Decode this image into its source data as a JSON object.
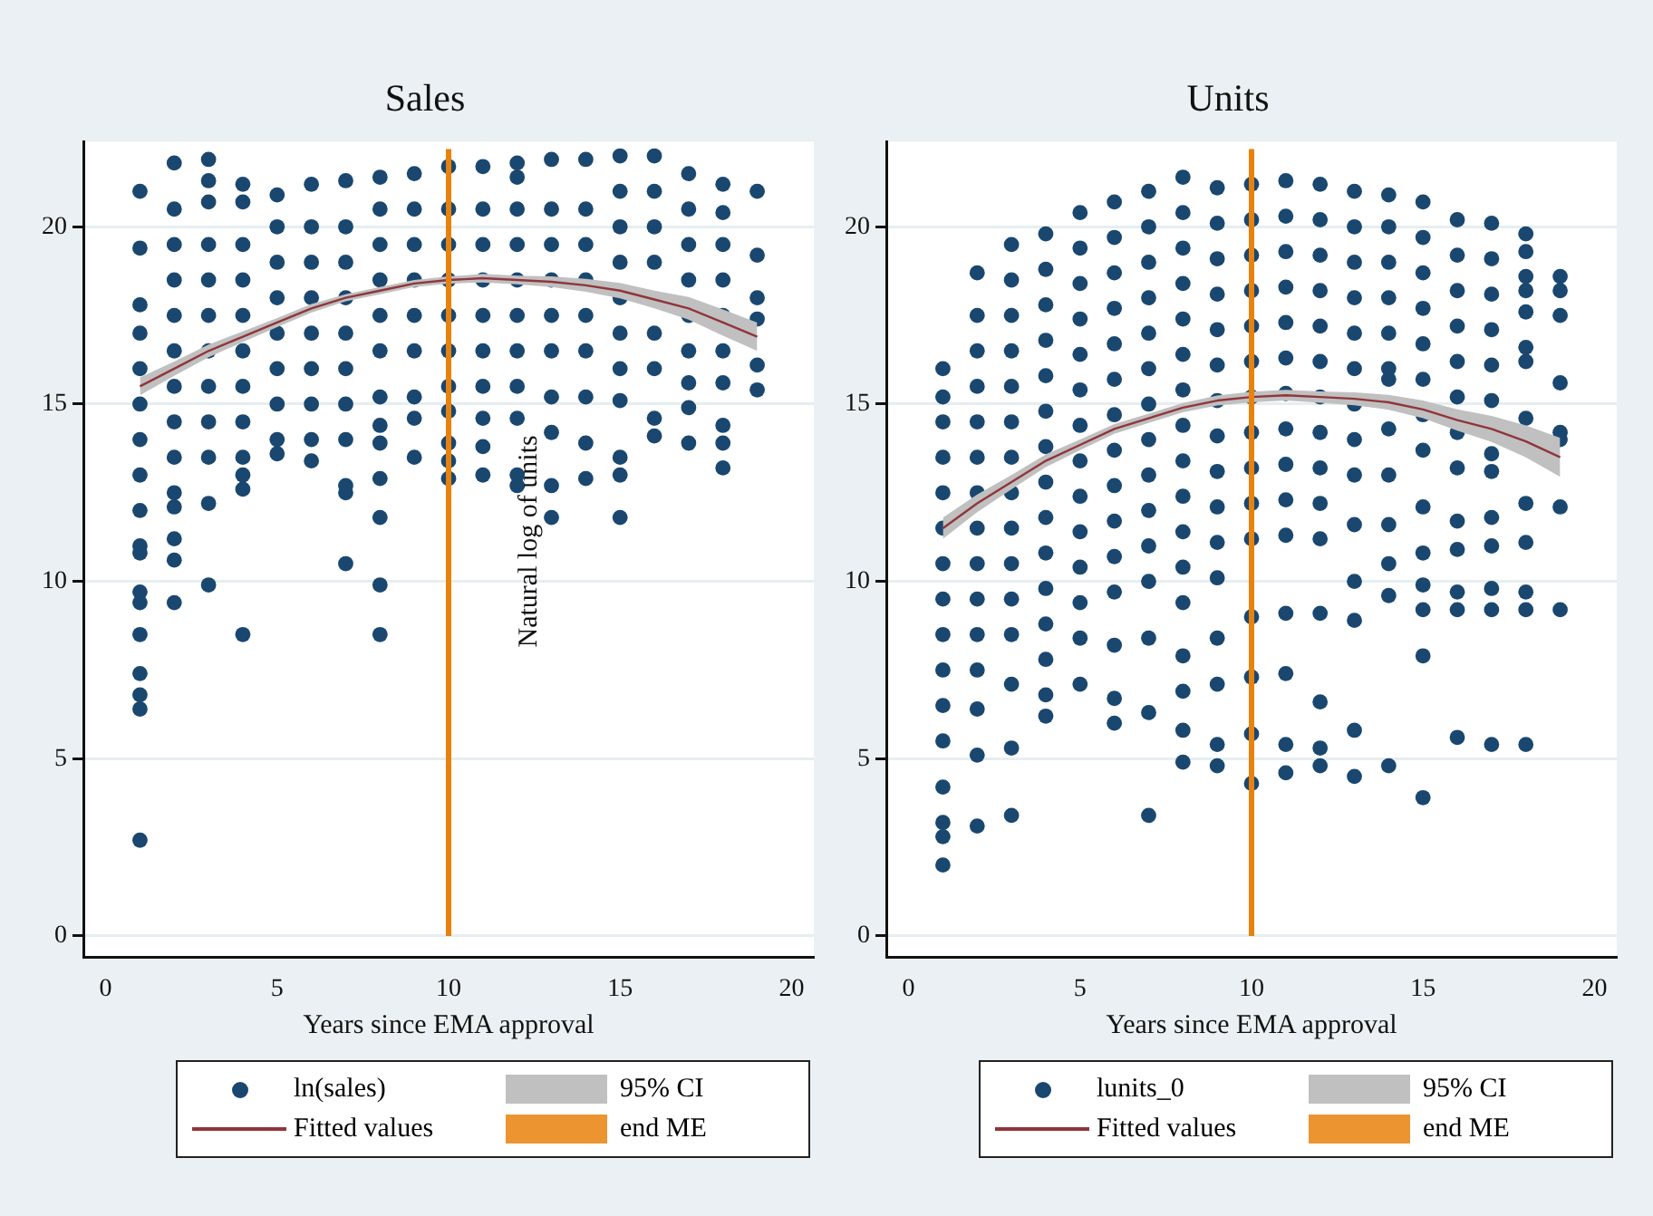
{
  "chart_data": [
    {
      "type": "scatter",
      "title": "Sales",
      "xlabel": "Years since EMA approval",
      "xlim": [
        -0.65,
        20.65
      ],
      "xticks": [
        0,
        5,
        10,
        15,
        20
      ],
      "ylim": [
        -0.6,
        22.4
      ],
      "yticks": [
        0,
        5,
        10,
        15,
        20
      ],
      "grid": "y",
      "legend": "bottom",
      "annotations": [
        "Natural log of units",
        "95% CI"
      ],
      "ref_lines": [
        {
          "axis": "x",
          "value": 10,
          "label": "end ME",
          "color": "#e8820c"
        }
      ],
      "series": [
        {
          "name": "ln(sales)",
          "color": "#1a476f",
          "marker": "circle",
          "x": [
            1,
            1,
            1,
            1,
            1,
            1,
            1,
            1,
            1,
            1,
            1,
            1,
            1,
            1,
            1,
            1,
            1,
            1,
            2,
            2,
            2,
            2,
            2,
            2,
            2,
            2,
            2,
            2,
            2,
            2,
            2,
            2,
            3,
            3,
            3,
            3,
            3,
            3,
            3,
            3,
            3,
            3,
            3,
            3,
            4,
            4,
            4,
            4,
            4,
            4,
            4,
            4,
            4,
            4,
            4,
            4,
            5,
            5,
            5,
            5,
            5,
            5,
            5,
            5,
            5,
            6,
            6,
            6,
            6,
            6,
            6,
            6,
            6,
            6,
            7,
            7,
            7,
            7,
            7,
            7,
            7,
            7,
            7,
            7,
            7,
            8,
            8,
            8,
            8,
            8,
            8,
            8,
            8,
            8,
            8,
            8,
            8,
            8,
            9,
            9,
            9,
            9,
            9,
            9,
            9,
            9,
            9,
            10,
            10,
            10,
            10,
            10,
            10,
            10,
            10,
            10,
            10,
            10,
            11,
            11,
            11,
            11,
            11,
            11,
            11,
            11,
            11,
            11,
            12,
            12,
            12,
            12,
            12,
            12,
            12,
            12,
            12,
            12,
            12,
            13,
            13,
            13,
            13,
            13,
            13,
            13,
            13,
            13,
            13,
            14,
            14,
            14,
            14,
            14,
            14,
            14,
            14,
            14,
            15,
            15,
            15,
            15,
            15,
            15,
            15,
            15,
            15,
            15,
            15,
            16,
            16,
            16,
            16,
            16,
            16,
            16,
            16,
            17,
            17,
            17,
            17,
            17,
            17,
            17,
            17,
            17,
            18,
            18,
            18,
            18,
            18,
            18,
            18,
            18,
            18,
            18,
            19,
            19,
            19,
            19,
            19,
            19
          ],
          "values": [
            21.0,
            19.4,
            17.8,
            17,
            16,
            15,
            14,
            13,
            12,
            11,
            10.8,
            9.7,
            9.4,
            8.5,
            7.4,
            6.8,
            6.4,
            2.7,
            21.8,
            20.5,
            19.5,
            18.5,
            17.5,
            16.5,
            15.5,
            14.5,
            13.5,
            12.5,
            12.1,
            11.2,
            10.6,
            9.4,
            21.9,
            21.3,
            20.7,
            19.5,
            18.5,
            17.5,
            16.5,
            15.5,
            14.5,
            13.5,
            12.2,
            9.9,
            21.2,
            20.7,
            19.5,
            18.5,
            17.5,
            16.5,
            15.5,
            14.5,
            13.5,
            13.0,
            12.6,
            8.5,
            20.9,
            20,
            19,
            18,
            17,
            16,
            15,
            14,
            13.6,
            21.2,
            20,
            19,
            18,
            17,
            16,
            15,
            14,
            13.4,
            21.3,
            20,
            19,
            18,
            17,
            16,
            15,
            14.0,
            12.7,
            12.5,
            10.5,
            21.4,
            20.5,
            19.5,
            18.5,
            17.5,
            16.5,
            15.2,
            14.4,
            13.9,
            12.9,
            11.8,
            9.9,
            8.5,
            21.5,
            20.5,
            19.5,
            18.5,
            17.5,
            16.5,
            15.2,
            14.6,
            13.5,
            21.7,
            20.5,
            19.5,
            18.5,
            17.5,
            16.5,
            15.5,
            14.8,
            13.9,
            13.4,
            12.9,
            21.7,
            20.5,
            19.5,
            18.5,
            17.5,
            16.5,
            15.5,
            14.6,
            13.8,
            13.0,
            21.8,
            21.4,
            20.5,
            19.5,
            18.5,
            17.5,
            16.5,
            15.5,
            14.6,
            13.0,
            12.7,
            21.9,
            20.5,
            19.5,
            18.5,
            17.5,
            16.5,
            15.2,
            14.2,
            12.7,
            11.8,
            21.9,
            20.5,
            19.5,
            18.5,
            17.5,
            16.5,
            15.2,
            13.9,
            12.9,
            22.0,
            21,
            20,
            19,
            18,
            17,
            16,
            15.1,
            13.5,
            13.0,
            11.8,
            22.0,
            21,
            20,
            19,
            17,
            16,
            14.6,
            14.1,
            21.5,
            20.5,
            19.5,
            18.5,
            17.5,
            16.5,
            15.6,
            14.9,
            13.9,
            21.2,
            20.4,
            19.5,
            18.5,
            17.5,
            16.5,
            15.6,
            14.4,
            13.9,
            13.2,
            21.0,
            19.2,
            18.0,
            17.4,
            16.1,
            15.4
          ]
        },
        {
          "type": "line",
          "name": "Fitted values",
          "color": "#90353b",
          "x": [
            1,
            2,
            3,
            4,
            5,
            6,
            7,
            8,
            9,
            10,
            11,
            12,
            13,
            14,
            15,
            16,
            17,
            18,
            19
          ],
          "values": [
            15.5,
            16.0,
            16.5,
            16.9,
            17.3,
            17.7,
            18.0,
            18.2,
            18.4,
            18.5,
            18.55,
            18.5,
            18.45,
            18.35,
            18.2,
            17.95,
            17.7,
            17.3,
            16.9
          ],
          "lower": [
            15.25,
            15.8,
            16.32,
            16.75,
            17.17,
            17.58,
            17.9,
            18.1,
            18.3,
            18.4,
            18.43,
            18.38,
            18.3,
            18.17,
            17.98,
            17.7,
            17.38,
            16.93,
            16.5
          ],
          "upper": [
            15.75,
            16.2,
            16.68,
            17.05,
            17.43,
            17.82,
            18.1,
            18.3,
            18.5,
            18.6,
            18.67,
            18.62,
            18.6,
            18.53,
            18.42,
            18.2,
            18.02,
            17.67,
            17.3
          ]
        }
      ]
    },
    {
      "type": "scatter",
      "title": "Units",
      "xlabel": "Years since EMA approval",
      "xlim": [
        -0.65,
        20.65
      ],
      "xticks": [
        0,
        5,
        10,
        15,
        20
      ],
      "ylim": [
        -0.6,
        22.4
      ],
      "yticks": [
        0,
        5,
        10,
        15,
        20
      ],
      "grid": "y",
      "legend": "bottom",
      "annotations": [
        "95% CI"
      ],
      "ref_lines": [
        {
          "axis": "x",
          "value": 10,
          "label": "end ME",
          "color": "#e8820c"
        }
      ],
      "series": [
        {
          "name": "lunits_0",
          "color": "#1a476f",
          "marker": "circle",
          "x": [
            1,
            1,
            1,
            1,
            1,
            1,
            1,
            1,
            1,
            1,
            1,
            1,
            1,
            1,
            1,
            1,
            2,
            2,
            2,
            2,
            2,
            2,
            2,
            2,
            2,
            2,
            2,
            2,
            2,
            2,
            2,
            3,
            3,
            3,
            3,
            3,
            3,
            3,
            3,
            3,
            3,
            3,
            3,
            3,
            3,
            3,
            4,
            4,
            4,
            4,
            4,
            4,
            4,
            4,
            4,
            4,
            4,
            4,
            4,
            4,
            4,
            5,
            5,
            5,
            5,
            5,
            5,
            5,
            5,
            5,
            5,
            5,
            5,
            5,
            5,
            6,
            6,
            6,
            6,
            6,
            6,
            6,
            6,
            6,
            6,
            6,
            6,
            6,
            6,
            6,
            7,
            7,
            7,
            7,
            7,
            7,
            7,
            7,
            7,
            7,
            7,
            7,
            7,
            7,
            7,
            8,
            8,
            8,
            8,
            8,
            8,
            8,
            8,
            8,
            8,
            8,
            8,
            8,
            8,
            8,
            8,
            8,
            9,
            9,
            9,
            9,
            9,
            9,
            9,
            9,
            9,
            9,
            9,
            9,
            9,
            9,
            9,
            9,
            10,
            10,
            10,
            10,
            10,
            10,
            10,
            10,
            10,
            10,
            10,
            10,
            10,
            10,
            10,
            11,
            11,
            11,
            11,
            11,
            11,
            11,
            11,
            11,
            11,
            11,
            11,
            11,
            11,
            11,
            12,
            12,
            12,
            12,
            12,
            12,
            12,
            12,
            12,
            12,
            12,
            12,
            12,
            12,
            12,
            13,
            13,
            13,
            13,
            13,
            13,
            13,
            13,
            13,
            13,
            13,
            13,
            13,
            13,
            14,
            14,
            14,
            14,
            14,
            14,
            14,
            14,
            14,
            14,
            14,
            14,
            14,
            15,
            15,
            15,
            15,
            15,
            15,
            15,
            15,
            15,
            15,
            15,
            15,
            15,
            15,
            16,
            16,
            16,
            16,
            16,
            16,
            16,
            16,
            16,
            16,
            16,
            16,
            16,
            17,
            17,
            17,
            17,
            17,
            17,
            17,
            17,
            17,
            17,
            17,
            17,
            17,
            18,
            18,
            18,
            18,
            18,
            18,
            18,
            18,
            18,
            18,
            18,
            18,
            18,
            19,
            19,
            19,
            19,
            19,
            19,
            19,
            19
          ],
          "values": [
            16.0,
            15.2,
            14.5,
            13.5,
            12.5,
            11.5,
            10.5,
            9.5,
            8.5,
            7.5,
            6.5,
            5.5,
            4.2,
            3.2,
            2.8,
            2.0,
            18.7,
            17.5,
            16.5,
            15.5,
            14.5,
            13.5,
            12.5,
            11.5,
            10.5,
            9.5,
            8.5,
            7.5,
            6.4,
            5.1,
            3.1,
            19.5,
            18.5,
            17.5,
            16.5,
            15.5,
            14.5,
            13.5,
            12.5,
            11.5,
            10.5,
            9.5,
            8.5,
            7.1,
            5.3,
            3.4,
            19.8,
            18.8,
            17.8,
            16.8,
            15.8,
            14.8,
            13.8,
            12.8,
            11.8,
            10.8,
            9.8,
            8.8,
            7.8,
            6.8,
            6.2,
            20.4,
            19.4,
            18.4,
            17.4,
            16.4,
            15.4,
            14.4,
            13.4,
            12.4,
            11.4,
            10.4,
            9.4,
            8.4,
            7.1,
            20.7,
            19.7,
            18.7,
            17.7,
            16.7,
            15.7,
            14.7,
            13.7,
            12.7,
            11.7,
            10.7,
            9.7,
            8.2,
            6.7,
            6.0,
            21.0,
            20,
            19,
            18,
            17,
            16,
            15,
            14,
            13,
            12,
            11,
            10,
            8.4,
            6.3,
            3.4,
            21.4,
            20.4,
            19.4,
            18.4,
            17.4,
            16.4,
            15.4,
            14.4,
            13.4,
            12.4,
            11.4,
            10.4,
            9.4,
            7.9,
            6.9,
            5.8,
            4.9,
            21.1,
            20.1,
            19.1,
            18.1,
            17.1,
            16.1,
            15.1,
            14.1,
            13.1,
            12.1,
            11.1,
            10.1,
            8.4,
            7.1,
            5.4,
            4.8,
            21.2,
            20.2,
            19.2,
            18.2,
            17.2,
            16.2,
            15.2,
            14.2,
            13.2,
            12.2,
            11.2,
            9.0,
            7.3,
            5.7,
            4.3,
            21.3,
            20.3,
            19.3,
            18.3,
            17.3,
            16.3,
            15.3,
            14.3,
            13.3,
            12.3,
            11.3,
            9.1,
            7.4,
            5.4,
            4.6,
            21.2,
            20.2,
            19.2,
            18.2,
            17.2,
            16.2,
            15.2,
            14.2,
            13.2,
            12.2,
            11.2,
            9.1,
            6.6,
            5.3,
            4.8,
            21.0,
            20,
            19,
            18,
            17,
            16,
            15,
            14,
            13,
            11.6,
            10.0,
            8.9,
            5.8,
            4.5,
            20.9,
            20,
            19,
            18,
            17,
            16,
            15.7,
            14.3,
            13,
            11.6,
            10.5,
            9.6,
            4.8,
            20.7,
            19.7,
            18.7,
            17.7,
            16.7,
            15.7,
            14.7,
            13.7,
            12.1,
            10.8,
            9.9,
            9.2,
            7.9,
            3.9,
            20.2,
            19.2,
            18.2,
            17.2,
            16.2,
            15.2,
            14.2,
            13.2,
            11.7,
            10.9,
            9.7,
            9.2,
            5.6,
            20.1,
            19.1,
            18.1,
            17.1,
            16.1,
            15.1,
            13.6,
            13.1,
            11.8,
            11.0,
            9.8,
            9.2,
            5.4,
            19.8,
            19.3,
            18.6,
            18.2,
            17.6,
            16.2,
            14.6,
            12.2,
            11.1,
            9.7,
            9.2,
            5.4,
            16.6,
            18.6,
            18.2,
            17.5,
            15.6,
            14.2,
            14.0,
            12.1,
            9.2
          ]
        },
        {
          "type": "line",
          "name": "Fitted values",
          "color": "#90353b",
          "x": [
            1,
            2,
            3,
            4,
            5,
            6,
            7,
            8,
            9,
            10,
            11,
            12,
            13,
            14,
            15,
            16,
            17,
            18,
            19
          ],
          "values": [
            11.5,
            12.2,
            12.8,
            13.4,
            13.85,
            14.3,
            14.6,
            14.9,
            15.1,
            15.2,
            15.25,
            15.2,
            15.15,
            15.05,
            14.85,
            14.55,
            14.3,
            13.95,
            13.5
          ],
          "lower": [
            11.2,
            11.95,
            12.6,
            13.22,
            13.7,
            14.16,
            14.47,
            14.77,
            14.96,
            15.05,
            15.1,
            15.04,
            14.97,
            14.84,
            14.6,
            14.25,
            13.93,
            13.5,
            12.95
          ],
          "upper": [
            11.8,
            12.45,
            13.0,
            13.58,
            14.0,
            14.44,
            14.73,
            15.03,
            15.24,
            15.35,
            15.4,
            15.36,
            15.33,
            15.26,
            15.1,
            14.85,
            14.67,
            14.4,
            14.05
          ]
        }
      ]
    }
  ]
}
